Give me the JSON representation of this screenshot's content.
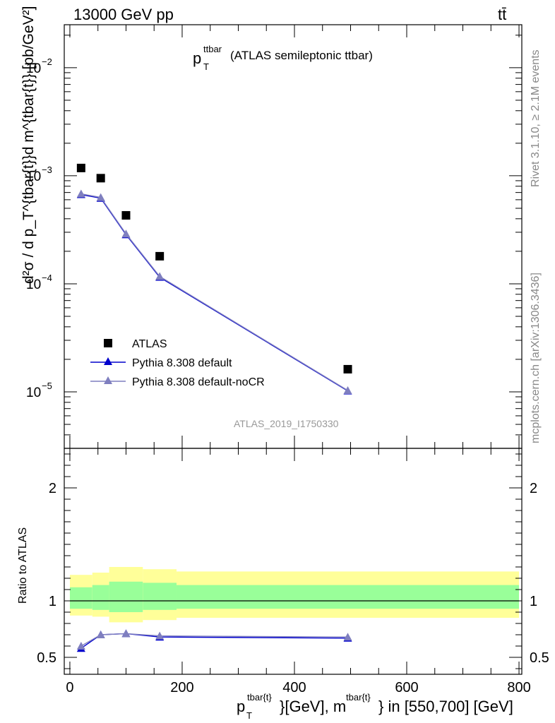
{
  "header": {
    "left_label": "13000 GeV pp",
    "right_label": "tt̄"
  },
  "side_labels": {
    "rivet": "Rivet 3.1.10, ≥ 2.1M events",
    "mcplots": "mcplots.cern.ch [arXiv:1306.3436]"
  },
  "chart_data": [
    {
      "type": "scatter",
      "panel": "main",
      "title_main": "p",
      "title_sup": "ttbar",
      "title_sub": "T",
      "title_rest": "(ATLAS semileptonic ttbar)",
      "ylabel": "d²σ / d p_T^{tbar{t}}d m^{tbar{t}} [pb/GeV²]",
      "yscale": "log",
      "ylim": [
        3e-06,
        0.025
      ],
      "xlim": [
        -10,
        805
      ],
      "y_ticks": [
        {
          "value": 0.01,
          "base": "10",
          "exp": "−2"
        },
        {
          "value": 0.001,
          "base": "10",
          "exp": "−3"
        },
        {
          "value": 0.0001,
          "base": "10",
          "exp": "−4"
        },
        {
          "value": 1e-05,
          "base": "10",
          "exp": "−5"
        }
      ],
      "series": [
        {
          "name": "ATLAS",
          "marker": "square",
          "color": "#000000",
          "x": [
            20,
            55,
            100,
            160,
            495
          ],
          "y": [
            0.00118,
            0.00095,
            0.00043,
            0.00018,
            1.62e-05
          ]
        },
        {
          "name": "Pythia 8.308 default",
          "marker": "triangle",
          "color": "#0000cc",
          "x": [
            20,
            55,
            100,
            160,
            495
          ],
          "y": [
            0.00067,
            0.00062,
            0.000285,
            0.000115,
            1.02e-05
          ]
        },
        {
          "name": "Pythia 8.308 default-noCR",
          "marker": "triangle",
          "color": "#7f7fbf",
          "x": [
            20,
            55,
            100,
            160,
            495
          ],
          "y": [
            0.00068,
            0.00063,
            0.00029,
            0.000117,
            1.03e-05
          ]
        }
      ],
      "legend": "bottom-left",
      "watermark": "ATLAS_2019_I1750330"
    },
    {
      "type": "line",
      "panel": "ratio",
      "ylabel": "Ratio to ATLAS",
      "ylim": [
        0.35,
        2.35
      ],
      "xlim": [
        -10,
        805
      ],
      "y_ticks": [
        {
          "value": 0.5,
          "label": "0.5"
        },
        {
          "value": 1,
          "label": "1"
        },
        {
          "value": 2,
          "label": "2"
        }
      ],
      "x_ticks": [
        {
          "value": 0,
          "label": "0"
        },
        {
          "value": 200,
          "label": "200"
        },
        {
          "value": 400,
          "label": "400"
        },
        {
          "value": 600,
          "label": "600"
        },
        {
          "value": 800,
          "label": "800"
        }
      ],
      "xlabel_parts": {
        "p": "p",
        "sub": "T",
        "sup1": "tbar{t}",
        "mid": "}[GeV], m",
        "sup2": "tbar{t}",
        "end": "} in [550,700] [GeV]"
      },
      "bands": {
        "yellow_color": "#ffff99",
        "green_color": "#99ff99",
        "bins": [
          {
            "x0": 0,
            "x1": 40,
            "y_lo": 0.87,
            "y_hi": 1.23,
            "g_lo": 0.93,
            "g_hi": 1.12
          },
          {
            "x0": 40,
            "x1": 70,
            "y_lo": 0.86,
            "y_hi": 1.25,
            "g_lo": 0.92,
            "g_hi": 1.14
          },
          {
            "x0": 70,
            "x1": 130,
            "y_lo": 0.81,
            "y_hi": 1.3,
            "g_lo": 0.9,
            "g_hi": 1.17
          },
          {
            "x0": 130,
            "x1": 190,
            "y_lo": 0.83,
            "y_hi": 1.28,
            "g_lo": 0.92,
            "g_hi": 1.16
          },
          {
            "x0": 190,
            "x1": 800,
            "y_lo": 0.85,
            "y_hi": 1.26,
            "g_lo": 0.93,
            "g_hi": 1.14
          }
        ]
      },
      "series": [
        {
          "name": "Pythia 8.308 default",
          "color": "#0000cc",
          "x": [
            20,
            55,
            100,
            160,
            495
          ],
          "y": [
            0.58,
            0.7,
            0.71,
            0.68,
            0.67
          ]
        },
        {
          "name": "Pythia 8.308 default-noCR",
          "color": "#7f7fbf",
          "x": [
            20,
            55,
            100,
            160,
            495
          ],
          "y": [
            0.6,
            0.7,
            0.71,
            0.69,
            0.68
          ]
        }
      ]
    }
  ]
}
